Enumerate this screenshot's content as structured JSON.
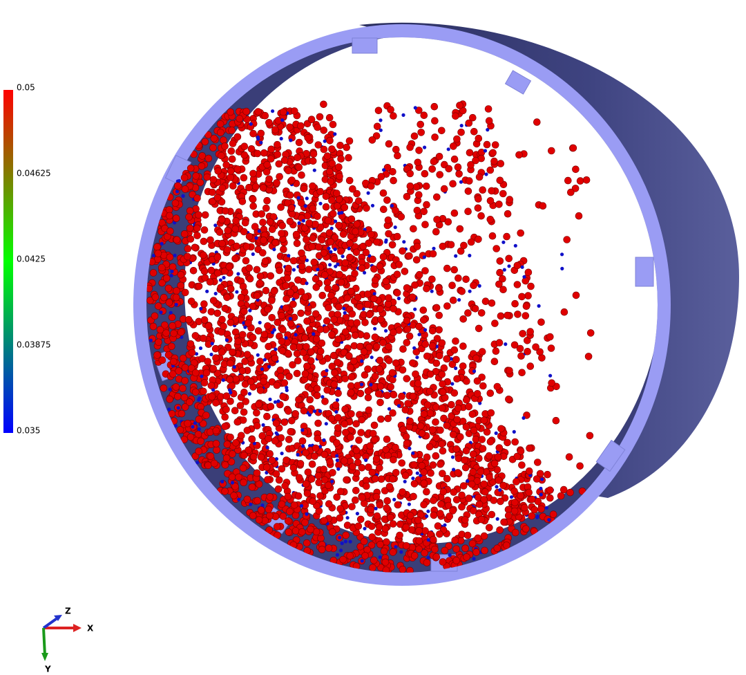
{
  "colorbar": {
    "labels": [
      "0.05",
      "0.04625",
      "0.0425",
      "0.03875",
      "0.035"
    ]
  },
  "axes_triad": {
    "z": "Z",
    "x": "X",
    "y": "Y"
  }
}
